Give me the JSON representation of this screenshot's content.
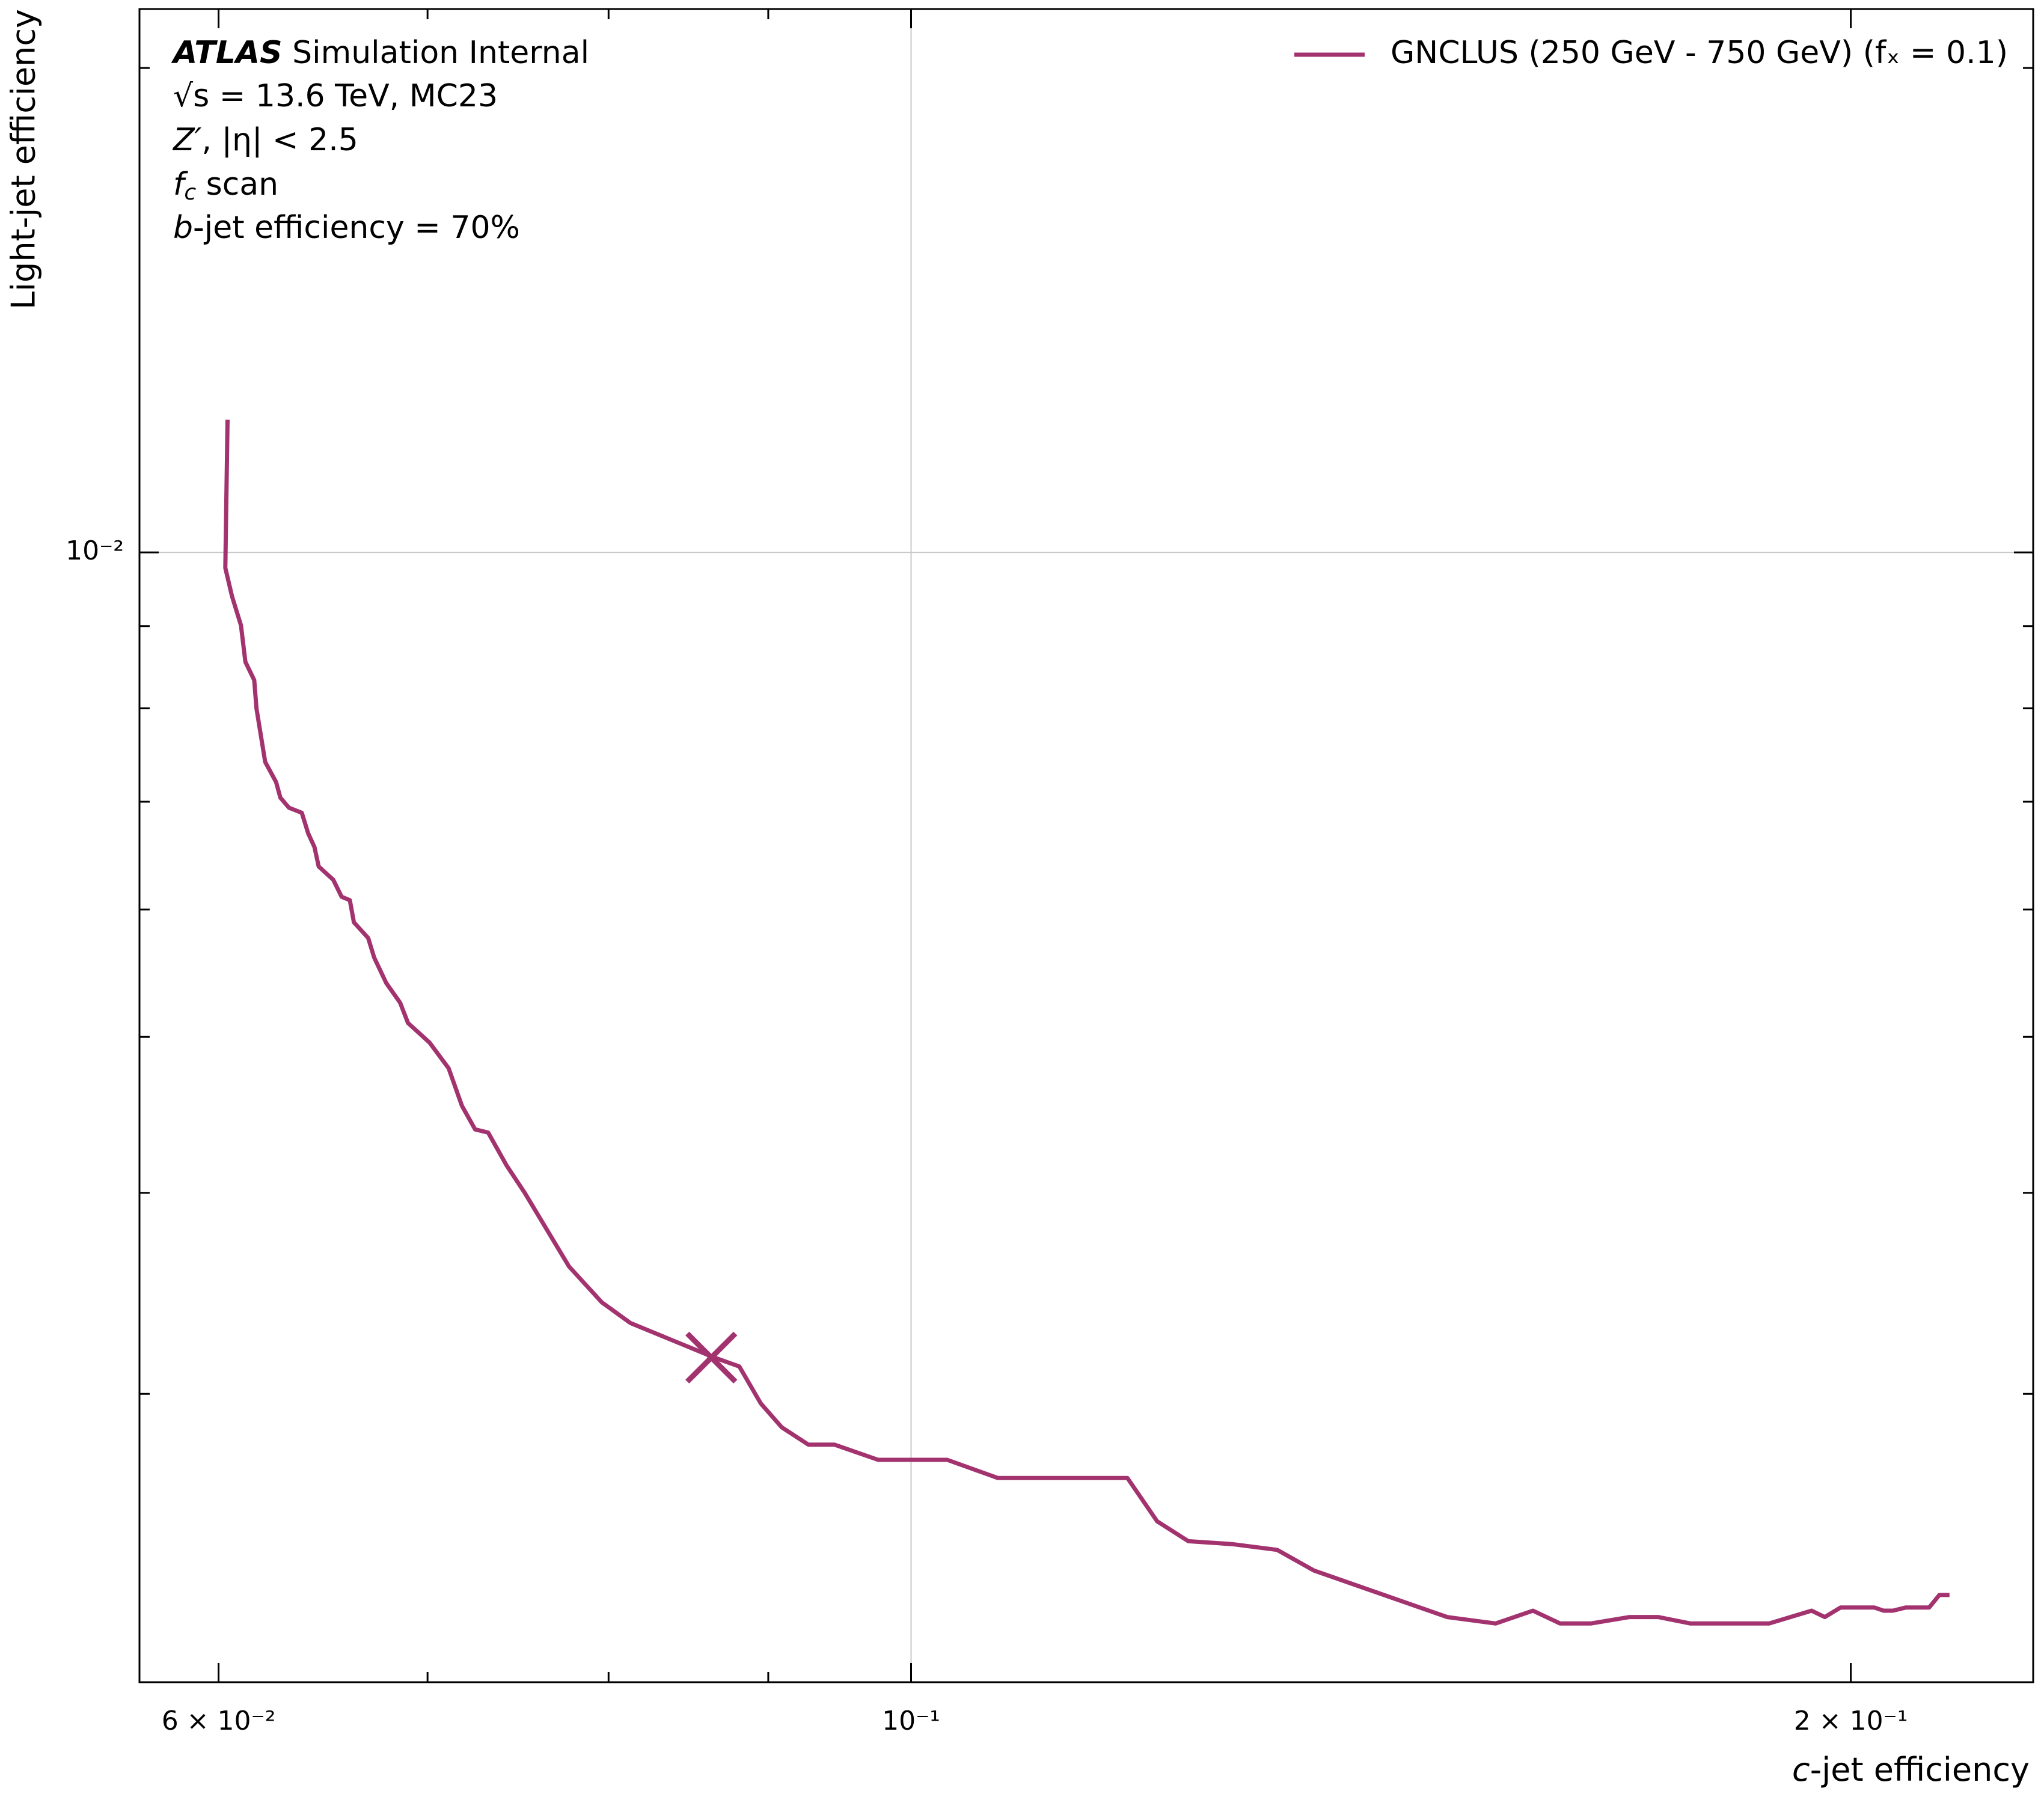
{
  "chart_data": {
    "type": "line",
    "atlas_label": "ATLAS",
    "atlas_sublabel": "Simulation Internal",
    "info_lines": [
      [
        "√s = 13.6 TeV, MC23"
      ],
      [
        "Z′",
        ", |η| < 2.5"
      ],
      [
        "f",
        "c",
        " scan"
      ],
      [
        "b",
        "-jet efficiency = 70%"
      ]
    ],
    "x_label": [
      "c",
      "-jet efficiency"
    ],
    "y_label": "Light-jet efficiency",
    "xlog": true,
    "ylog": true,
    "xlim": [
      0.0566,
      0.2288
    ],
    "ylim": [
      0.001986,
      0.02176
    ],
    "xticks": [
      {
        "value": 0.06,
        "label": "6 × 10⁻²"
      },
      {
        "value": 0.1,
        "label": "10⁻¹"
      },
      {
        "value": 0.2,
        "label": "2 × 10⁻¹"
      }
    ],
    "xminorticks": [
      0.07,
      0.08,
      0.09
    ],
    "yticks": [
      {
        "value": 0.01,
        "label": "10⁻²"
      }
    ],
    "yminorticks": [
      0.003,
      0.004,
      0.005,
      0.006,
      0.007,
      0.008,
      0.009,
      0.02
    ],
    "xgrid": [
      0.1
    ],
    "ygrid": [
      0.01
    ],
    "legend": "upper right",
    "series": [
      {
        "name": "GNCLUS (250 GeV - 750 GeV) (fₓ = 0.1)",
        "color": "#a2336f",
        "x": [
          0.0604,
          0.0603,
          0.0606,
          0.061,
          0.0612,
          0.0616,
          0.0617,
          0.0621,
          0.0626,
          0.0628,
          0.0632,
          0.0638,
          0.0641,
          0.0644,
          0.0646,
          0.0653,
          0.0657,
          0.0661,
          0.0663,
          0.067,
          0.0673,
          0.0679,
          0.0686,
          0.069,
          0.0701,
          0.0711,
          0.0718,
          0.0725,
          0.0732,
          0.0742,
          0.0752,
          0.0777,
          0.0796,
          0.0813,
          0.0865,
          0.0881,
          0.0895,
          0.0909,
          0.0927,
          0.0945,
          0.0976,
          0.1027,
          0.1066,
          0.1173,
          0.1199,
          0.1227,
          0.1267,
          0.131,
          0.1346,
          0.1485,
          0.1539,
          0.1582,
          0.1614,
          0.1651,
          0.1699,
          0.1735,
          0.1777,
          0.1883,
          0.1943,
          0.1962,
          0.1985,
          0.2035,
          0.2049,
          0.2063,
          0.2083,
          0.2119,
          0.2135,
          0.2151
        ],
        "values": [
          0.01209,
          0.00978,
          0.00939,
          0.00901,
          0.00855,
          0.00833,
          0.008,
          0.00741,
          0.0072,
          0.00704,
          0.00694,
          0.00689,
          0.00669,
          0.00656,
          0.00638,
          0.00626,
          0.00611,
          0.00608,
          0.00589,
          0.00576,
          0.0056,
          0.0054,
          0.00525,
          0.0051,
          0.00496,
          0.00478,
          0.00453,
          0.00438,
          0.00436,
          0.00416,
          0.004,
          0.0036,
          0.00342,
          0.00332,
          0.00316,
          0.00312,
          0.00296,
          0.00286,
          0.00279,
          0.00279,
          0.00273,
          0.00273,
          0.00266,
          0.00266,
          0.0025,
          0.00243,
          0.00242,
          0.0024,
          0.00233,
          0.00218,
          0.00216,
          0.0022,
          0.00216,
          0.00216,
          0.00218,
          0.00218,
          0.00216,
          0.00216,
          0.0022,
          0.00218,
          0.00221,
          0.00221,
          0.0022,
          0.0022,
          0.00221,
          0.00221,
          0.00225,
          0.00225
        ]
      }
    ],
    "marker": {
      "x": 0.0863,
      "y": 0.00316
    }
  }
}
